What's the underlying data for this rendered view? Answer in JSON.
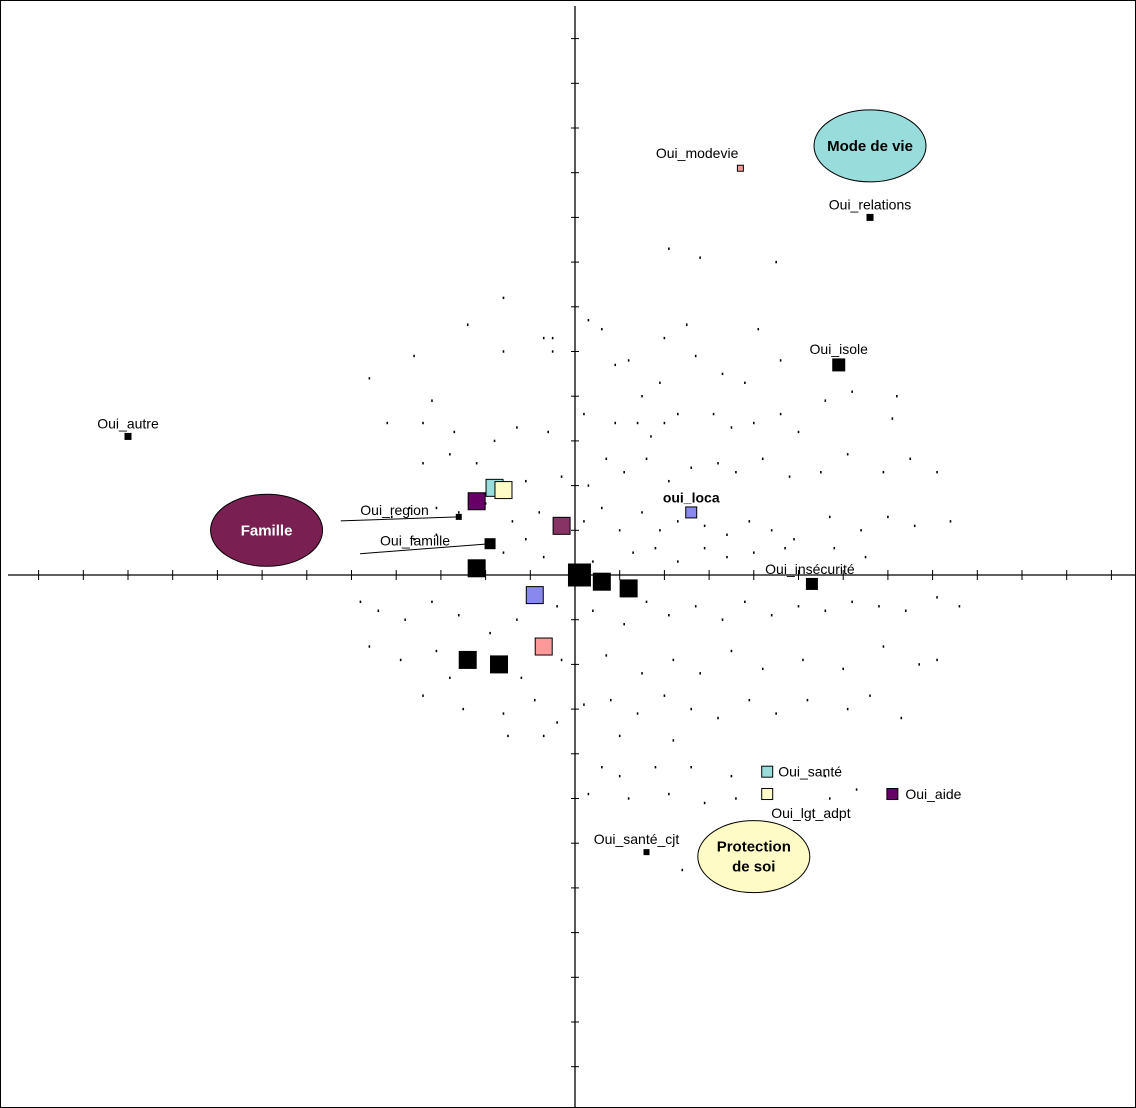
{
  "chart_data": {
    "type": "scatter",
    "title": "",
    "xlabel": "",
    "ylabel": "",
    "xlim": [
      -12.8,
      12.6
    ],
    "ylim": [
      -12.0,
      12.9
    ],
    "grid": false,
    "groups": [
      {
        "name": "Famille",
        "x": -6.9,
        "y": 1.0,
        "color": "#7a1f52",
        "text_color": "#ffffff"
      },
      {
        "name": "Mode de vie",
        "x": 6.6,
        "y": 9.6,
        "color": "#99dcdc",
        "text_color": "#000000"
      },
      {
        "name": "Protection de soi",
        "lines": [
          "Protection",
          "de soi"
        ],
        "x": 4.0,
        "y": -6.3,
        "color": "#fffbc6",
        "text_color": "#000000"
      }
    ],
    "labeled_points": [
      {
        "label": "Oui_modevie",
        "x": 3.7,
        "y": 9.1,
        "color": "#ff9999"
      },
      {
        "label": "Oui_relations",
        "x": 6.6,
        "y": 8.0,
        "color": "#000000"
      },
      {
        "label": "Oui_isole",
        "x": 5.9,
        "y": 4.7,
        "color": "#000000"
      },
      {
        "label": "Oui_autre",
        "x": -10.0,
        "y": 3.1,
        "color": "#000000"
      },
      {
        "label": "oui_loca",
        "x": 2.6,
        "y": 1.4,
        "color": "#8888ee"
      },
      {
        "label": "Oui_region",
        "x": -2.6,
        "y": 1.3,
        "color": "#000000"
      },
      {
        "label": "Oui_famille",
        "x": -1.9,
        "y": 0.7,
        "color": "#000000"
      },
      {
        "label": "Oui_insécurité",
        "x": 5.3,
        "y": -0.2,
        "color": "#000000"
      },
      {
        "label": "Oui_santé",
        "x": 4.3,
        "y": -4.4,
        "color": "#99dcdc"
      },
      {
        "label": "Oui_lgt_adpt",
        "x": 4.3,
        "y": -4.9,
        "color": "#fffbc6"
      },
      {
        "label": "Oui_aide",
        "x": 7.1,
        "y": -4.9,
        "color": "#660066"
      },
      {
        "label": "Oui_santé_cjt",
        "x": 1.6,
        "y": -6.2,
        "color": "#000000"
      }
    ],
    "modalities": [
      {
        "x": 0.1,
        "y": 0.0,
        "color": "#000000"
      },
      {
        "x": 0.6,
        "y": -0.15,
        "color": "#000000"
      },
      {
        "x": 1.2,
        "y": -0.3,
        "color": "#000000"
      },
      {
        "x": -2.2,
        "y": 0.15,
        "color": "#000000"
      },
      {
        "x": -2.4,
        "y": -1.9,
        "color": "#000000"
      },
      {
        "x": -1.7,
        "y": -2.0,
        "color": "#000000"
      },
      {
        "x": -0.9,
        "y": -0.45,
        "color": "#8888ee"
      },
      {
        "x": -0.7,
        "y": -1.6,
        "color": "#ff9999"
      },
      {
        "x": -0.3,
        "y": 1.1,
        "color": "#883366"
      },
      {
        "x": -2.2,
        "y": 1.65,
        "color": "#660066"
      },
      {
        "x": -1.8,
        "y": 1.95,
        "color": "#99dcdc"
      },
      {
        "x": -1.6,
        "y": 1.9,
        "color": "#fffbc6"
      }
    ],
    "individuals": [
      [
        2.1,
        7.3
      ],
      [
        2.8,
        7.1
      ],
      [
        4.5,
        7.0
      ],
      [
        -1.6,
        6.2
      ],
      [
        0.3,
        5.7
      ],
      [
        -3.6,
        4.9
      ],
      [
        -1.6,
        5.0
      ],
      [
        -0.7,
        5.3
      ],
      [
        -0.5,
        5.3
      ],
      [
        -0.5,
        5.0
      ],
      [
        -2.4,
        5.6
      ],
      [
        0.6,
        5.5
      ],
      [
        0.9,
        4.7
      ],
      [
        1.2,
        4.8
      ],
      [
        1.5,
        4.0
      ],
      [
        1.9,
        4.3
      ],
      [
        2.0,
        5.3
      ],
      [
        2.5,
        5.6
      ],
      [
        2.7,
        4.9
      ],
      [
        3.3,
        4.5
      ],
      [
        3.8,
        4.3
      ],
      [
        4.1,
        5.5
      ],
      [
        4.6,
        4.8
      ],
      [
        -4.6,
        4.4
      ],
      [
        -3.2,
        3.9
      ],
      [
        -4.2,
        3.4
      ],
      [
        -3.4,
        3.4
      ],
      [
        -2.7,
        3.2
      ],
      [
        -1.8,
        3.0
      ],
      [
        -1.3,
        3.3
      ],
      [
        -0.6,
        3.2
      ],
      [
        0.2,
        3.6
      ],
      [
        0.9,
        3.4
      ],
      [
        1.4,
        3.4
      ],
      [
        1.7,
        3.1
      ],
      [
        2.0,
        3.4
      ],
      [
        2.3,
        3.6
      ],
      [
        3.1,
        3.6
      ],
      [
        3.5,
        3.3
      ],
      [
        4.0,
        3.4
      ],
      [
        4.6,
        3.6
      ],
      [
        5.0,
        3.2
      ],
      [
        5.6,
        3.9
      ],
      [
        6.2,
        4.1
      ],
      [
        7.2,
        4.0
      ],
      [
        7.1,
        3.5
      ],
      [
        -3.4,
        2.5
      ],
      [
        -2.8,
        2.7
      ],
      [
        -2.2,
        2.5
      ],
      [
        -1.1,
        2.1
      ],
      [
        -0.3,
        2.2
      ],
      [
        0.3,
        2.0
      ],
      [
        0.7,
        2.6
      ],
      [
        1.1,
        2.3
      ],
      [
        1.6,
        2.6
      ],
      [
        2.1,
        2.1
      ],
      [
        2.6,
        2.4
      ],
      [
        3.2,
        2.5
      ],
      [
        3.6,
        2.3
      ],
      [
        4.2,
        2.6
      ],
      [
        4.8,
        2.2
      ],
      [
        5.5,
        2.3
      ],
      [
        6.1,
        2.7
      ],
      [
        6.9,
        2.3
      ],
      [
        7.5,
        2.6
      ],
      [
        8.1,
        2.3
      ],
      [
        -4.1,
        1.3
      ],
      [
        -3.7,
        1.5
      ],
      [
        -3.1,
        1.5
      ],
      [
        -2.6,
        1.4
      ],
      [
        -2.0,
        1.6
      ],
      [
        -1.4,
        1.2
      ],
      [
        -0.8,
        1.4
      ],
      [
        0.2,
        1.2
      ],
      [
        0.6,
        1.5
      ],
      [
        1.0,
        1.0
      ],
      [
        1.5,
        1.4
      ],
      [
        1.9,
        1.0
      ],
      [
        2.3,
        1.2
      ],
      [
        2.9,
        1.1
      ],
      [
        3.4,
        0.9
      ],
      [
        3.9,
        1.2
      ],
      [
        4.4,
        1.0
      ],
      [
        4.9,
        0.8
      ],
      [
        5.7,
        1.3
      ],
      [
        6.4,
        1.0
      ],
      [
        7.0,
        1.3
      ],
      [
        7.6,
        1.1
      ],
      [
        8.4,
        1.2
      ],
      [
        -3.6,
        0.8
      ],
      [
        -3.1,
        0.9
      ],
      [
        -1.6,
        0.5
      ],
      [
        -1.1,
        0.8
      ],
      [
        -0.7,
        0.4
      ],
      [
        0.4,
        0.3
      ],
      [
        1.3,
        0.5
      ],
      [
        1.8,
        0.6
      ],
      [
        2.3,
        0.3
      ],
      [
        2.9,
        0.6
      ],
      [
        3.4,
        0.4
      ],
      [
        4.0,
        0.5
      ],
      [
        4.7,
        0.6
      ],
      [
        5.8,
        0.6
      ],
      [
        6.5,
        0.4
      ],
      [
        -4.8,
        -0.6
      ],
      [
        -4.4,
        -0.8
      ],
      [
        -3.8,
        -1.0
      ],
      [
        -3.2,
        -0.6
      ],
      [
        -2.6,
        -0.9
      ],
      [
        -1.9,
        -1.3
      ],
      [
        -1.3,
        -1.0
      ],
      [
        -0.4,
        -0.7
      ],
      [
        0.4,
        -0.8
      ],
      [
        1.1,
        -1.1
      ],
      [
        1.6,
        -0.6
      ],
      [
        2.1,
        -0.9
      ],
      [
        2.7,
        -0.7
      ],
      [
        3.3,
        -1.0
      ],
      [
        3.8,
        -0.6
      ],
      [
        4.4,
        -0.9
      ],
      [
        5.0,
        -0.7
      ],
      [
        5.6,
        -0.8
      ],
      [
        6.2,
        -0.6
      ],
      [
        6.8,
        -0.7
      ],
      [
        7.4,
        -0.8
      ],
      [
        8.1,
        -0.5
      ],
      [
        8.6,
        -0.7
      ],
      [
        -4.6,
        -1.6
      ],
      [
        -3.9,
        -1.9
      ],
      [
        -3.1,
        -1.7
      ],
      [
        -2.8,
        -2.3
      ],
      [
        -1.2,
        -2.3
      ],
      [
        -0.3,
        -1.9
      ],
      [
        0.7,
        -1.8
      ],
      [
        1.5,
        -2.2
      ],
      [
        2.2,
        -1.9
      ],
      [
        2.8,
        -2.2
      ],
      [
        3.5,
        -1.7
      ],
      [
        4.2,
        -2.1
      ],
      [
        5.1,
        -1.9
      ],
      [
        6.0,
        -2.1
      ],
      [
        6.9,
        -1.6
      ],
      [
        7.7,
        -2.0
      ],
      [
        8.1,
        -1.9
      ],
      [
        -3.4,
        -2.7
      ],
      [
        -2.5,
        -3.0
      ],
      [
        -1.6,
        -3.1
      ],
      [
        -0.9,
        -2.8
      ],
      [
        -0.4,
        -3.3
      ],
      [
        0.2,
        -2.9
      ],
      [
        0.8,
        -2.8
      ],
      [
        1.4,
        -3.1
      ],
      [
        2.0,
        -2.7
      ],
      [
        2.6,
        -3.0
      ],
      [
        3.2,
        -3.2
      ],
      [
        3.9,
        -2.8
      ],
      [
        4.5,
        -3.1
      ],
      [
        5.2,
        -2.8
      ],
      [
        6.1,
        -3.0
      ],
      [
        6.6,
        -2.7
      ],
      [
        7.3,
        -3.2
      ],
      [
        -1.5,
        -3.6
      ],
      [
        -0.7,
        -3.6
      ],
      [
        1.0,
        -3.6
      ],
      [
        2.2,
        -3.7
      ],
      [
        0.6,
        -4.3
      ],
      [
        1.0,
        -4.5
      ],
      [
        1.8,
        -4.3
      ],
      [
        2.6,
        -4.3
      ],
      [
        3.5,
        -4.5
      ],
      [
        5.6,
        -4.5
      ],
      [
        0.3,
        -4.9
      ],
      [
        1.2,
        -5.0
      ],
      [
        2.1,
        -4.9
      ],
      [
        2.9,
        -5.1
      ],
      [
        3.6,
        -5.0
      ],
      [
        5.7,
        -5.0
      ],
      [
        6.3,
        -4.8
      ],
      [
        2.4,
        -6.6
      ],
      [
        3.3,
        -6.4
      ]
    ]
  }
}
